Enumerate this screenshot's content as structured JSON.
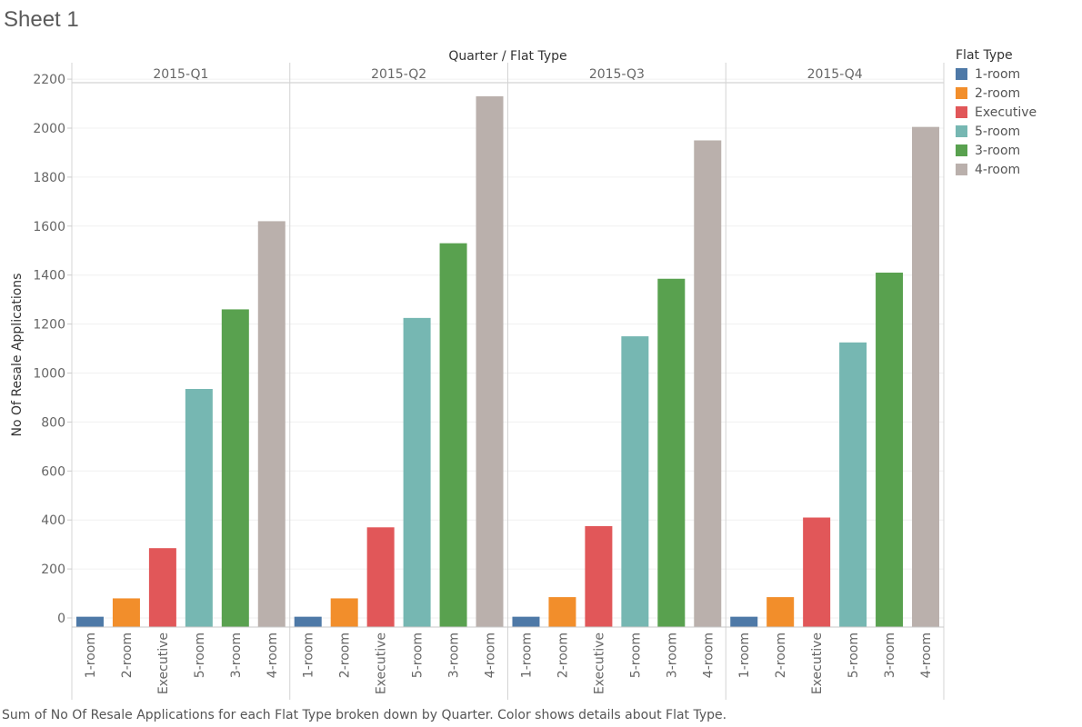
{
  "sheet": {
    "title": "Sheet 1"
  },
  "footnote": "Sum of No Of Resale Applications for each Flat Type broken down by Quarter.  Color shows details about Flat Type.",
  "legend": {
    "title": "Flat Type",
    "items": [
      {
        "label": "1-room",
        "color": "#4e79a7"
      },
      {
        "label": "2-room",
        "color": "#f28e2b"
      },
      {
        "label": "Executive",
        "color": "#e15759"
      },
      {
        "label": "5-room",
        "color": "#76b7b2"
      },
      {
        "label": "3-room",
        "color": "#59a14f"
      },
      {
        "label": "4-room",
        "color": "#bab0ac"
      }
    ]
  },
  "chart_data": {
    "type": "bar",
    "column_header": "Quarter / Flat Type",
    "ylabel": "No Of Resale Applications",
    "ylim": [
      -40,
      2235
    ],
    "yticks": [
      0,
      200,
      400,
      600,
      800,
      1000,
      1200,
      1400,
      1600,
      1800,
      2000,
      2200
    ],
    "grid": true,
    "legend_position": "right",
    "panels": [
      "2015-Q1",
      "2015-Q2",
      "2015-Q3",
      "2015-Q4"
    ],
    "categories": [
      "1-room",
      "2-room",
      "Executive",
      "5-room",
      "3-room",
      "4-room"
    ],
    "series": [
      {
        "panel": "2015-Q1",
        "values": [
          5,
          80,
          285,
          935,
          1260,
          1620
        ]
      },
      {
        "panel": "2015-Q2",
        "values": [
          5,
          80,
          370,
          1225,
          1530,
          2130
        ]
      },
      {
        "panel": "2015-Q3",
        "values": [
          5,
          85,
          375,
          1150,
          1385,
          1950
        ]
      },
      {
        "panel": "2015-Q4",
        "values": [
          5,
          85,
          410,
          1125,
          1410,
          2005
        ]
      }
    ]
  }
}
